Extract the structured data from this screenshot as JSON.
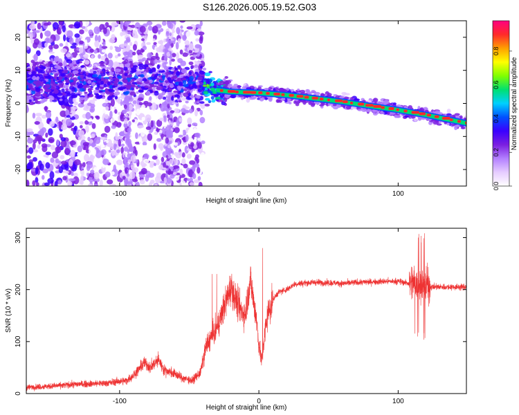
{
  "title": "S126.2026.005.19.52.G03",
  "colors": {
    "snr_line": "#ee3333",
    "colormap": [
      "#ffffff",
      "#e6ccff",
      "#b380ff",
      "#7b1fe0",
      "#3a00ff",
      "#0050ff",
      "#00d0ff",
      "#00e070",
      "#80ff00",
      "#ffff00",
      "#ffa000",
      "#ff2a2a",
      "#ff0080"
    ]
  },
  "chart_data": [
    {
      "type": "heatmap",
      "title": "S126.2026.005.19.52.G03",
      "xlabel": "Height of straight line (km)",
      "ylabel": "Frequency (Hz)",
      "xlim": [
        -167,
        149
      ],
      "ylim": [
        -25,
        25
      ],
      "xticks": [
        -100,
        0,
        100
      ],
      "yticks": [
        20,
        10,
        0,
        -10,
        -20
      ],
      "colorbar": {
        "label": "Normalized spectral amplitude",
        "range": [
          0,
          0.98
        ],
        "ticks": [
          0.0,
          0.2,
          0.4,
          0.6,
          0.8
        ]
      },
      "ridge": {
        "description": "dominant frequency track",
        "x": [
          -100,
          -80,
          -60,
          -40,
          -30,
          -20,
          0,
          20,
          40,
          60,
          80,
          100,
          120,
          149
        ],
        "y": [
          6.5,
          7.5,
          7.0,
          5.5,
          4.0,
          3.5,
          3.2,
          2.5,
          1.5,
          0.5,
          -0.8,
          -2.0,
          -3.5,
          -6.0
        ]
      }
    },
    {
      "type": "line",
      "xlabel": "Height of straight line (km)",
      "ylabel": "SNR (10 * v/v)",
      "xlim": [
        -167,
        149
      ],
      "ylim": [
        0,
        318
      ],
      "xticks": [
        -100,
        0,
        100
      ],
      "yticks": [
        0,
        100,
        200,
        300
      ],
      "series": [
        {
          "x": [
            -167,
            -150,
            -130,
            -110,
            -95,
            -90,
            -82,
            -78,
            -72,
            -68,
            -62,
            -55,
            -48,
            -42,
            -38,
            -34,
            -30,
            -27,
            -24,
            -20,
            -15,
            -10,
            -6,
            -4,
            -2,
            0,
            2,
            4,
            6,
            10,
            14,
            20,
            25,
            30,
            40,
            60,
            80,
            100,
            108,
            112,
            115,
            118,
            120,
            123,
            130,
            140,
            149
          ],
          "values": [
            12,
            14,
            18,
            20,
            25,
            35,
            60,
            50,
            65,
            45,
            40,
            30,
            25,
            40,
            90,
            110,
            125,
            150,
            175,
            205,
            170,
            150,
            220,
            180,
            150,
            95,
            60,
            110,
            150,
            180,
            195,
            200,
            210,
            212,
            214,
            212,
            215,
            216,
            212,
            215,
            210,
            208,
            212,
            205,
            205,
            205,
            205
          ]
        }
      ]
    }
  ]
}
